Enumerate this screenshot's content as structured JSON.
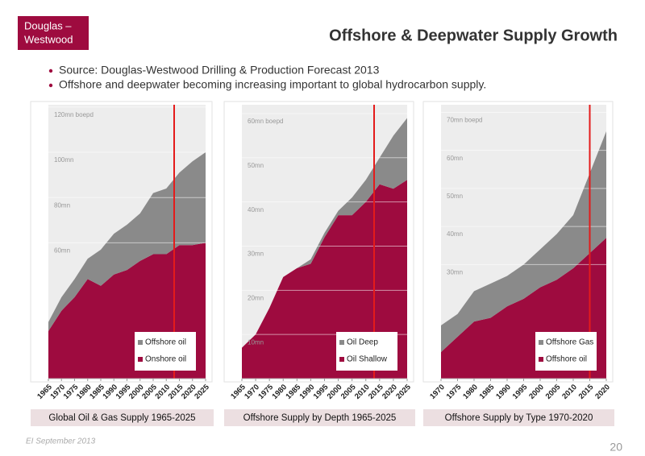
{
  "header": {
    "logo": [
      "Douglas –",
      "Westwood"
    ],
    "title": "Offshore & Deepwater Supply Growth"
  },
  "bullets": [
    "Source: Douglas-Westwood Drilling & Production Forecast 2013",
    "Offshore and deepwater becoming increasing important to global hydrocarbon supply."
  ],
  "chart_data": [
    {
      "type": "area",
      "stacked": true,
      "title": "Global Oil & Gas Supply 1965-2025",
      "x": [
        1965,
        1970,
        1975,
        1980,
        1985,
        1990,
        1995,
        2000,
        2005,
        2010,
        2015,
        2020,
        2025
      ],
      "xlim": [
        1965,
        2025
      ],
      "ylim": [
        0,
        121
      ],
      "yticks": [
        {
          "value": 60,
          "label": "60mn"
        },
        {
          "value": 80,
          "label": "80mn"
        },
        {
          "value": 100,
          "label": "100mn"
        },
        {
          "value": 120,
          "label": "120mn boepd"
        }
      ],
      "grid": true,
      "legend": "lower right",
      "marker_x": 2013,
      "marker_color": "#e41b1b",
      "series": [
        {
          "name": "Onshore oil",
          "color": "#9e0b3f",
          "values": [
            21,
            30,
            36,
            44,
            41,
            46,
            48,
            52,
            55,
            55,
            59,
            59,
            60
          ]
        },
        {
          "name": "Offshore oil",
          "color": "#8a8a8a",
          "values": [
            4,
            6,
            8,
            9,
            16,
            18,
            20,
            21,
            27,
            29,
            32,
            37,
            40
          ]
        }
      ]
    },
    {
      "type": "area",
      "stacked": true,
      "title": "Offshore Supply by Depth 1965-2025",
      "x": [
        1965,
        1970,
        1975,
        1980,
        1985,
        1990,
        1995,
        2000,
        2005,
        2010,
        2015,
        2020,
        2025
      ],
      "xlim": [
        1965,
        2025
      ],
      "ylim": [
        0,
        62
      ],
      "yticks": [
        {
          "value": 10,
          "label": "10mn"
        },
        {
          "value": 20,
          "label": "20mn"
        },
        {
          "value": 30,
          "label": "30mn"
        },
        {
          "value": 40,
          "label": "40mn"
        },
        {
          "value": 50,
          "label": "50mn"
        },
        {
          "value": 60,
          "label": "60mn boepd"
        }
      ],
      "grid": true,
      "legend": "lower right",
      "marker_x": 2013,
      "marker_color": "#e41b1b",
      "series": [
        {
          "name": "Oil Shallow",
          "color": "#9e0b3f",
          "values": [
            7,
            10,
            16,
            23,
            25,
            26,
            32,
            37,
            37,
            40,
            44,
            43,
            45
          ]
        },
        {
          "name": "Oil Deep",
          "color": "#8a8a8a",
          "values": [
            0,
            0,
            0,
            0,
            0,
            1,
            1,
            1,
            4,
            5,
            6,
            12,
            14
          ]
        }
      ]
    },
    {
      "type": "area",
      "stacked": true,
      "title": "Offshore Supply by Type 1970-2020",
      "x": [
        1970,
        1975,
        1980,
        1985,
        1990,
        1995,
        2000,
        2005,
        2010,
        2015,
        2020
      ],
      "xlim": [
        1970,
        2020
      ],
      "ylim": [
        0,
        72
      ],
      "yticks": [
        {
          "value": 30,
          "label": "30mn"
        },
        {
          "value": 40,
          "label": "40mn"
        },
        {
          "value": 50,
          "label": "50mn"
        },
        {
          "value": 60,
          "label": "60mn"
        },
        {
          "value": 70,
          "label": "70mn boepd"
        }
      ],
      "grid": true,
      "legend": "lower right",
      "marker_x": 2015,
      "marker_color": "#e41b1b",
      "series": [
        {
          "name": "Offshore oil",
          "color": "#9e0b3f",
          "values": [
            7,
            11,
            15,
            16,
            19,
            21,
            24,
            26,
            29,
            33,
            37
          ]
        },
        {
          "name": "Offshore Gas",
          "color": "#8a8a8a",
          "values": [
            7,
            6,
            8,
            9,
            8,
            9,
            10,
            12,
            14,
            21,
            28
          ]
        }
      ]
    }
  ],
  "footer": {
    "date": "EI September 2013",
    "page": 20
  }
}
